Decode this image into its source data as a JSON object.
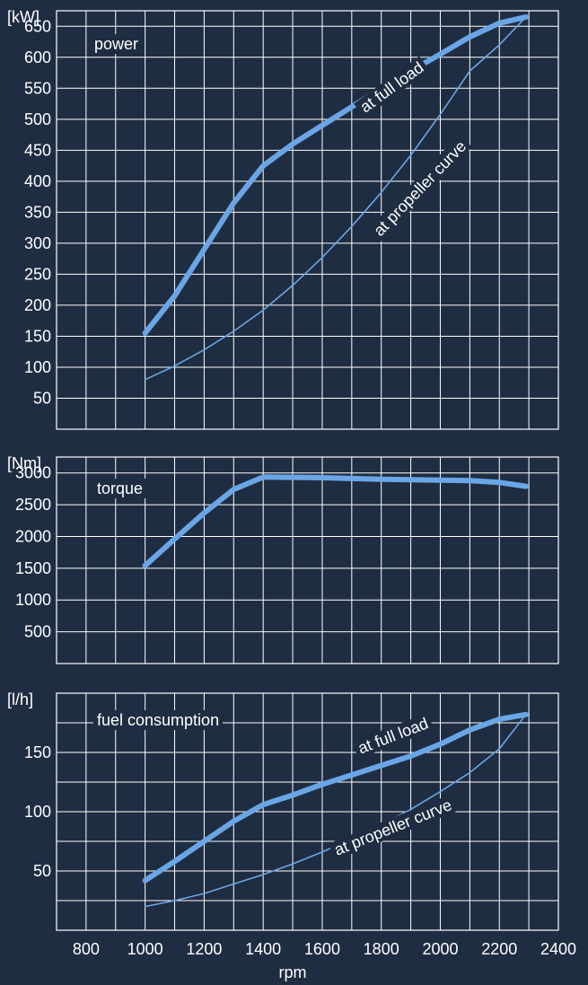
{
  "chart_data": [
    {
      "type": "line",
      "label": "power",
      "unit": "[kW]",
      "ylim": [
        0,
        675
      ],
      "xlim": [
        700,
        2400
      ],
      "y_ticks": [
        50,
        100,
        150,
        200,
        250,
        300,
        350,
        400,
        450,
        500,
        550,
        600,
        650
      ],
      "grid": true,
      "series": [
        {
          "name": "at full load",
          "color": "#6aa6e6",
          "points": [
            [
              1000,
              155
            ],
            [
              1100,
              215
            ],
            [
              1200,
              290
            ],
            [
              1300,
              365
            ],
            [
              1400,
              425
            ],
            [
              1500,
              460
            ],
            [
              1600,
              490
            ],
            [
              1700,
              520
            ],
            [
              1800,
              550
            ],
            [
              1900,
              578
            ],
            [
              2000,
              605
            ],
            [
              2100,
              633
            ],
            [
              2200,
              655
            ],
            [
              2290,
              665
            ]
          ]
        },
        {
          "name": "at propeller curve",
          "color": "#6aa6e6",
          "points": [
            [
              1000,
              80
            ],
            [
              1100,
              102
            ],
            [
              1200,
              128
            ],
            [
              1300,
              158
            ],
            [
              1400,
              192
            ],
            [
              1500,
              232
            ],
            [
              1600,
              277
            ],
            [
              1700,
              327
            ],
            [
              1800,
              382
            ],
            [
              1900,
              442
            ],
            [
              2000,
              508
            ],
            [
              2100,
              578
            ],
            [
              2200,
              620
            ],
            [
              2290,
              665
            ]
          ]
        }
      ]
    },
    {
      "type": "line",
      "label": "torque",
      "unit": "[Nm]",
      "ylim": [
        0,
        3250
      ],
      "xlim": [
        700,
        2400
      ],
      "y_ticks": [
        500,
        1000,
        1500,
        2000,
        2500,
        3000
      ],
      "grid": true,
      "series": [
        {
          "name": "",
          "color": "#6aa6e6",
          "points": [
            [
              1000,
              1540
            ],
            [
              1100,
              1960
            ],
            [
              1200,
              2370
            ],
            [
              1300,
              2740
            ],
            [
              1400,
              2935
            ],
            [
              1600,
              2925
            ],
            [
              1800,
              2900
            ],
            [
              2000,
              2885
            ],
            [
              2100,
              2880
            ],
            [
              2200,
              2850
            ],
            [
              2290,
              2790
            ]
          ]
        }
      ]
    },
    {
      "type": "line",
      "label": "fuel consumption",
      "unit": "[l/h]",
      "ylim": [
        0,
        200
      ],
      "xlim": [
        700,
        2400
      ],
      "y_ticks": [
        50,
        100,
        150
      ],
      "grid": true,
      "series": [
        {
          "name": "at full load",
          "color": "#6aa6e6",
          "points": [
            [
              1000,
              42
            ],
            [
              1100,
              58
            ],
            [
              1200,
              75
            ],
            [
              1300,
              92
            ],
            [
              1400,
              106
            ],
            [
              1500,
              114
            ],
            [
              1600,
              123
            ],
            [
              1700,
              131
            ],
            [
              1800,
              139
            ],
            [
              1900,
              147
            ],
            [
              2000,
              157
            ],
            [
              2100,
              169
            ],
            [
              2200,
              178
            ],
            [
              2290,
              182
            ]
          ]
        },
        {
          "name": "at propeller curve",
          "color": "#6aa6e6",
          "points": [
            [
              1000,
              20
            ],
            [
              1100,
              25
            ],
            [
              1200,
              31
            ],
            [
              1300,
              39
            ],
            [
              1400,
              47
            ],
            [
              1500,
              56
            ],
            [
              1600,
              66
            ],
            [
              1700,
              77
            ],
            [
              1800,
              89
            ],
            [
              1900,
              102
            ],
            [
              2000,
              117
            ],
            [
              2100,
              133
            ],
            [
              2200,
              153
            ],
            [
              2290,
              182
            ]
          ]
        }
      ]
    }
  ],
  "x_axis": {
    "label": "rpm",
    "ticks": [
      800,
      1000,
      1200,
      1400,
      1600,
      1800,
      2000,
      2200,
      2400
    ]
  },
  "colors": {
    "background": "#1f2d42",
    "grid": "#ffffff",
    "curve": "#6aa6e6"
  }
}
